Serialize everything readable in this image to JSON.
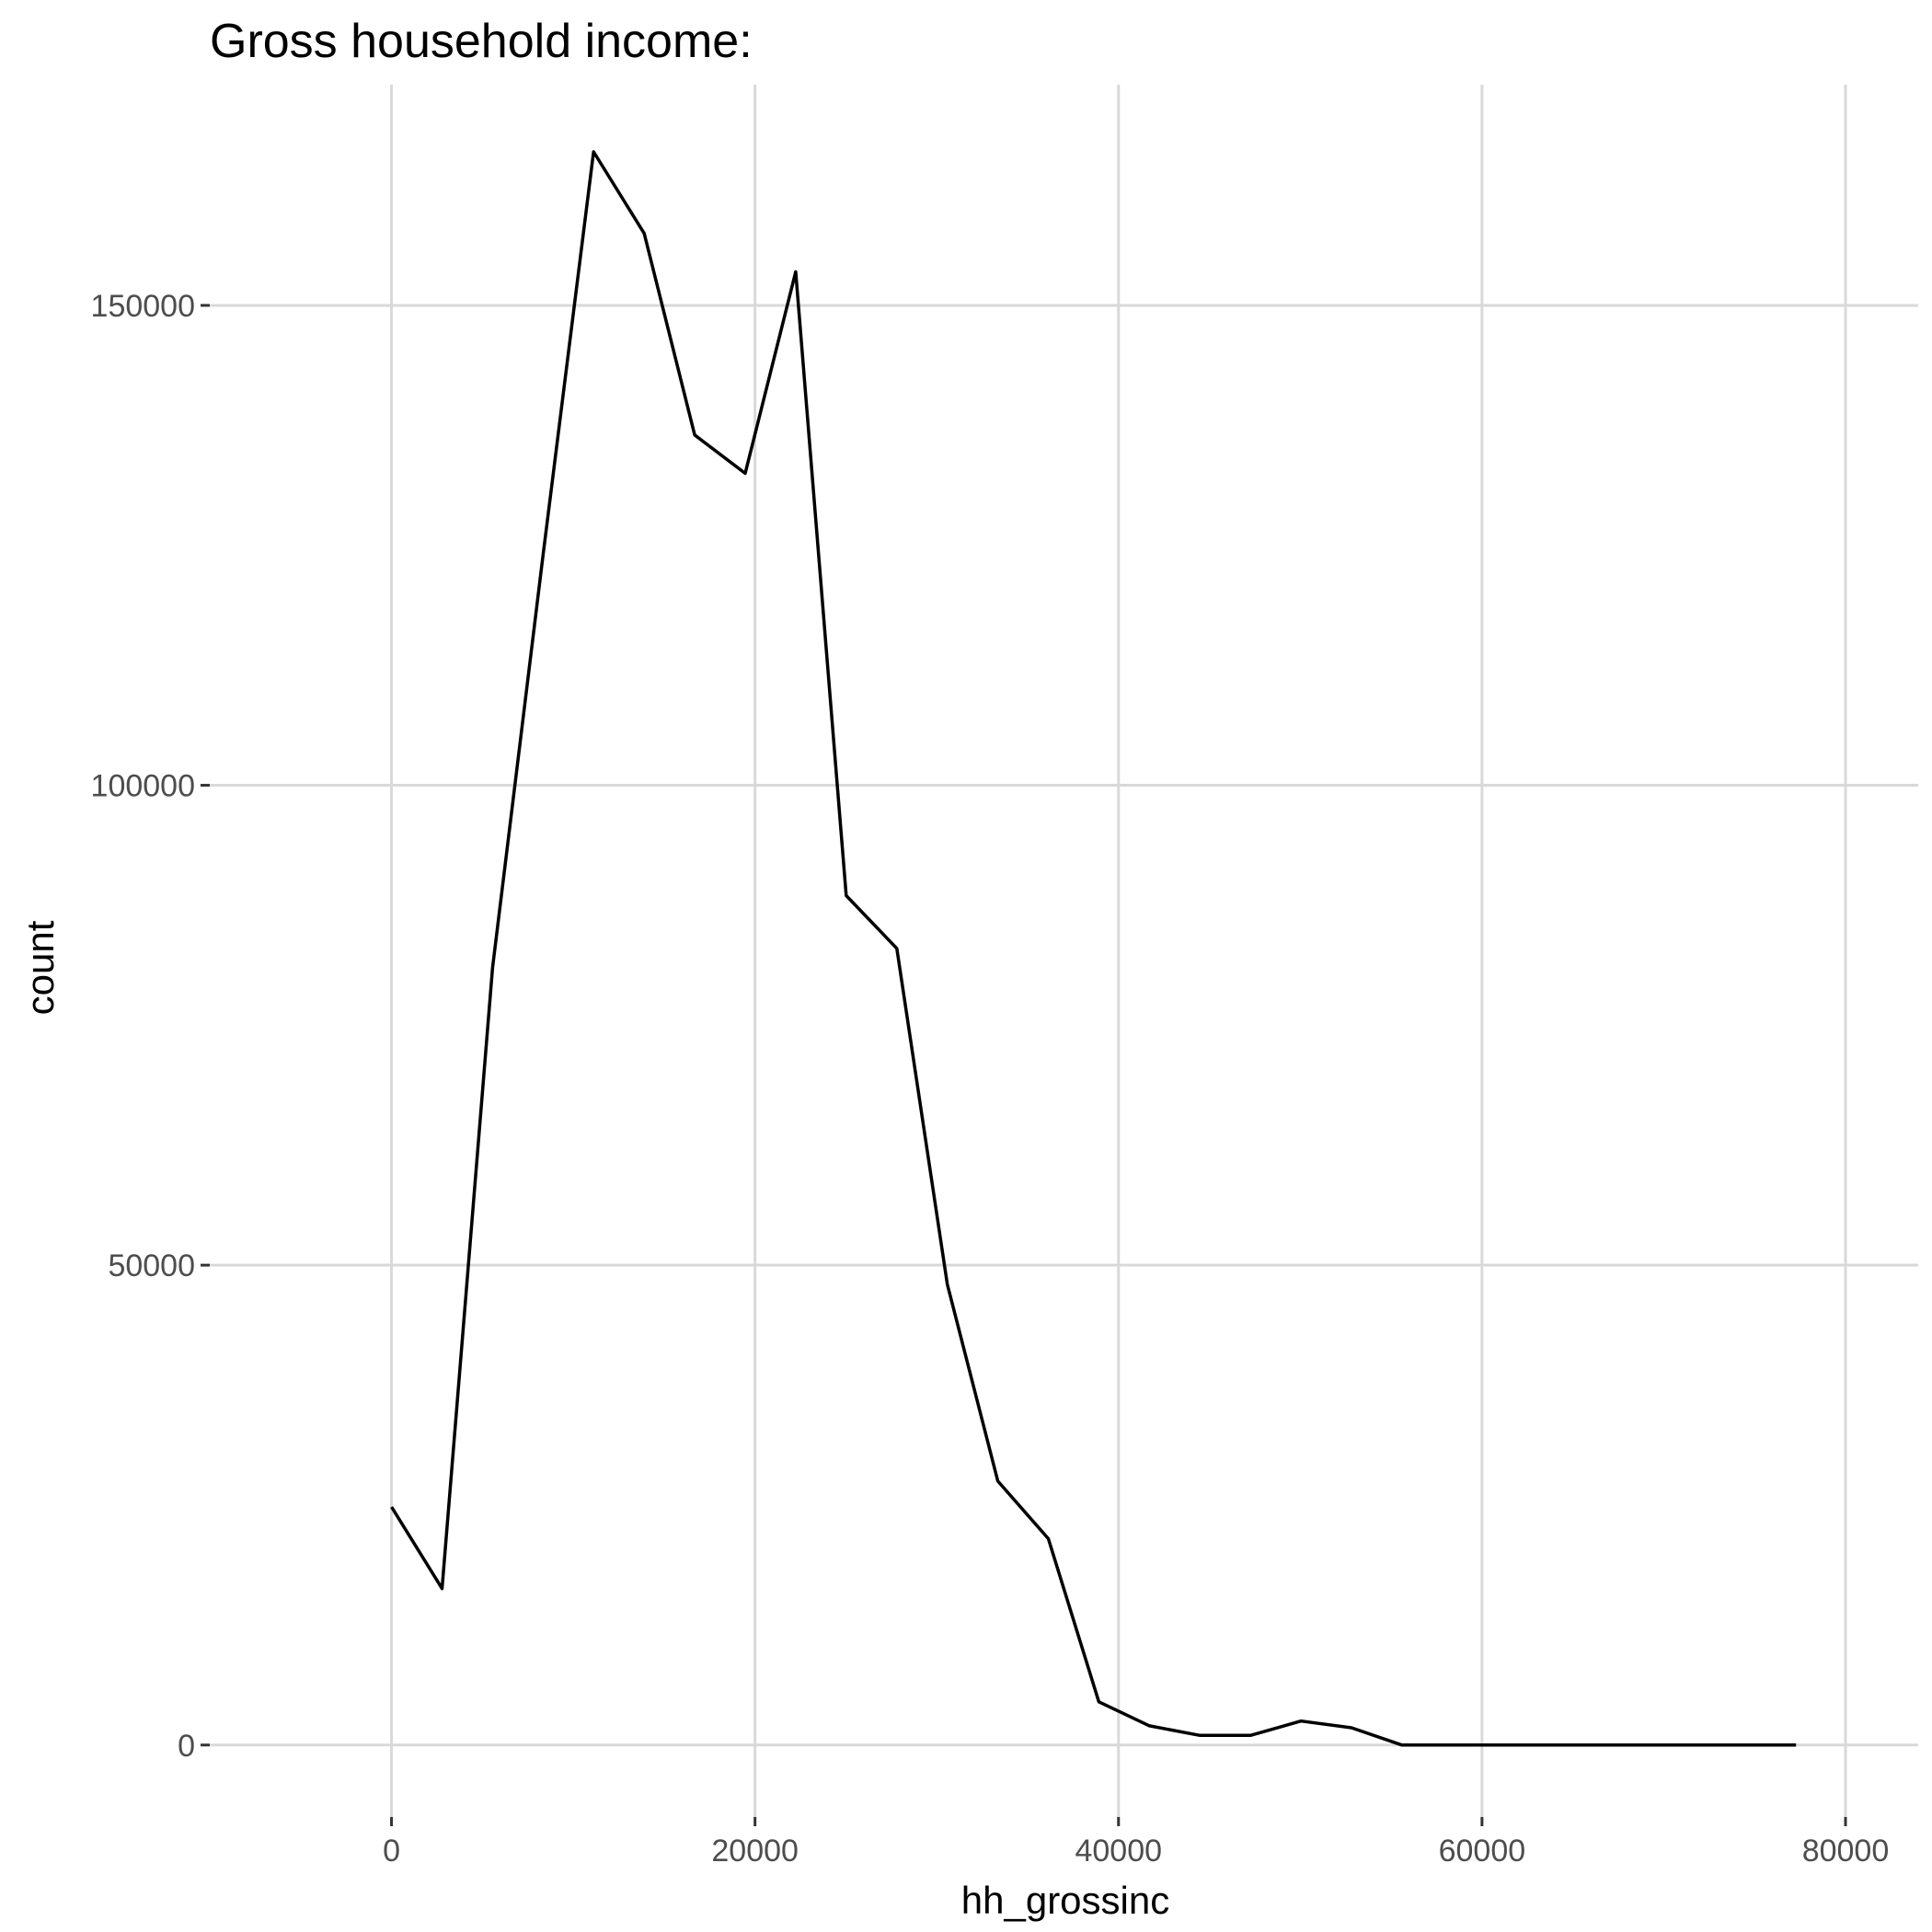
{
  "chart_data": {
    "type": "line",
    "title": "Gross household income:",
    "xlabel": "hh_grossinc",
    "ylabel": "count",
    "xlim": [
      -10000,
      84000
    ],
    "ylim": [
      -7500,
      173000
    ],
    "x_ticks": [
      0,
      20000,
      40000,
      60000,
      80000
    ],
    "x_tick_labels": [
      "0",
      "20000",
      "40000",
      "60000",
      "80000"
    ],
    "y_ticks": [
      0,
      50000,
      100000,
      150000
    ],
    "y_tick_labels": [
      "0",
      "50000",
      "100000",
      "150000"
    ],
    "grid": true,
    "series": [
      {
        "color": "#000000",
        "x": [
          0,
          2780,
          5560,
          8340,
          11120,
          13900,
          16680,
          19460,
          22240,
          25020,
          27800,
          30580,
          33360,
          36140,
          38920,
          41700,
          44480,
          47260,
          50040,
          52820,
          55600,
          58380,
          61160,
          63940,
          66720,
          69500,
          72280,
          75060,
          77280
        ],
        "y": [
          24800,
          16300,
          81000,
          124000,
          166000,
          157500,
          136500,
          132500,
          153500,
          88500,
          83000,
          48000,
          27500,
          21500,
          4500,
          2000,
          1000,
          1000,
          2500,
          1800,
          0,
          0,
          0,
          0,
          0,
          0,
          0,
          0,
          0
        ]
      }
    ]
  }
}
